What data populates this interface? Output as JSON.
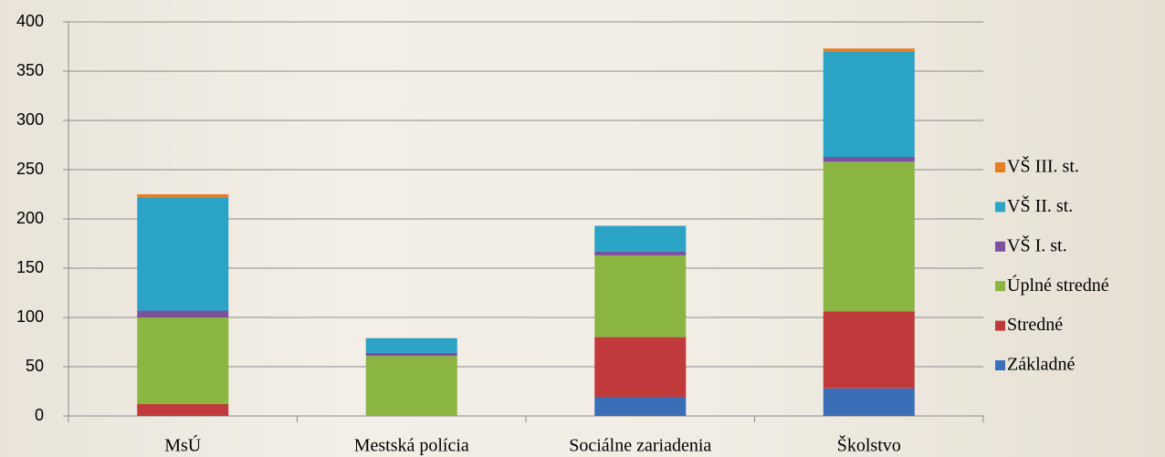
{
  "chart_data": {
    "type": "stacked_bar",
    "categories": [
      "MsÚ",
      "Mestská polícia",
      "Sociálne zariadenia",
      "Školstvo"
    ],
    "series": [
      {
        "name": "Základné",
        "color": "#3a6fb8",
        "values": [
          0,
          0,
          19,
          28
        ]
      },
      {
        "name": "Stredné",
        "color": "#c0393b",
        "values": [
          12,
          0,
          61,
          78
        ]
      },
      {
        "name": "Úplné stredné",
        "color": "#8ab540",
        "values": [
          88,
          61,
          83,
          152
        ]
      },
      {
        "name": "VŠ I. st.",
        "color": "#7a52a0",
        "values": [
          7,
          3,
          4,
          5
        ]
      },
      {
        "name": "VŠ II. st.",
        "color": "#2aa3c6",
        "values": [
          115,
          15,
          26,
          107
        ]
      },
      {
        "name": "VŠ III. st.",
        "color": "#e67e22",
        "values": [
          3,
          0,
          0,
          3
        ]
      }
    ],
    "ylim": [
      0,
      400
    ],
    "yticks": [
      0,
      50,
      100,
      150,
      200,
      250,
      300,
      350,
      400
    ],
    "grid": true,
    "legend": "right"
  }
}
